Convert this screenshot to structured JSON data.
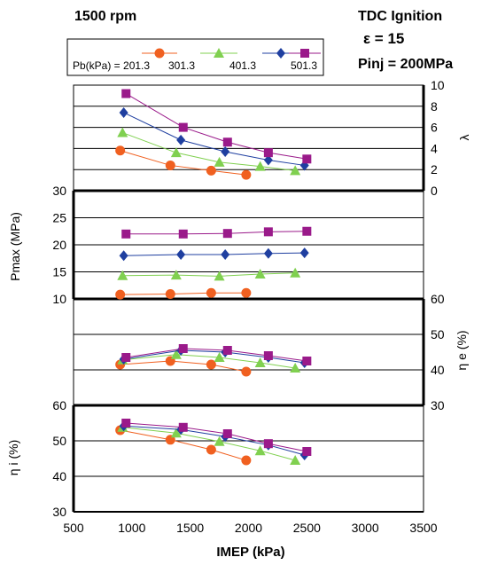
{
  "header": {
    "speed": "1500 rpm",
    "ignition": "TDC Ignition",
    "compression": "ε  = 15",
    "injection": "Pinj = 200MPa"
  },
  "legend": {
    "prefix": "Pb(kPa) = 201.3",
    "entries": [
      {
        "label": "201.3",
        "color": "#f06020",
        "marker": "circle"
      },
      {
        "label": "301.3",
        "color": "#80d050",
        "marker": "triangle"
      },
      {
        "label": "401.3",
        "color": "#1f3fa0",
        "marker": "diamond"
      },
      {
        "label": "501.3",
        "color": "#9a1a8a",
        "marker": "square"
      }
    ]
  },
  "chart_data": {
    "type": "line",
    "xlabel": "IMEP (kPa)",
    "xlim": [
      500,
      3500
    ],
    "xticks": [
      "500",
      "1000",
      "1500",
      "2000",
      "2500",
      "3000",
      "3500"
    ],
    "panels": [
      {
        "id": "lambda",
        "ylabel": "λ",
        "axis_side": "right",
        "ylim": [
          0,
          10
        ],
        "yticks": [
          "0",
          "2",
          "4",
          "6",
          "8",
          "10"
        ],
        "series": [
          {
            "name": "201.3",
            "points": [
              [
                900,
                3.8
              ],
              [
                1330,
                2.4
              ],
              [
                1680,
                1.9
              ],
              [
                1980,
                1.5
              ]
            ]
          },
          {
            "name": "301.3",
            "points": [
              [
                920,
                5.5
              ],
              [
                1380,
                3.6
              ],
              [
                1750,
                2.7
              ],
              [
                2100,
                2.3
              ],
              [
                2400,
                1.9
              ]
            ]
          },
          {
            "name": "401.3",
            "points": [
              [
                930,
                7.4
              ],
              [
                1420,
                4.8
              ],
              [
                1800,
                3.7
              ],
              [
                2170,
                2.9
              ],
              [
                2480,
                2.4
              ]
            ]
          },
          {
            "name": "501.3",
            "points": [
              [
                950,
                9.2
              ],
              [
                1440,
                6.0
              ],
              [
                1820,
                4.6
              ],
              [
                2170,
                3.6
              ],
              [
                2500,
                3.0
              ]
            ]
          }
        ]
      },
      {
        "id": "pmax",
        "ylabel": "Pmax (MPa)",
        "axis_side": "left",
        "ylim": [
          10,
          30
        ],
        "yticks": [
          "10",
          "15",
          "20",
          "25",
          "30"
        ],
        "series": [
          {
            "name": "201.3",
            "points": [
              [
                900,
                10.8
              ],
              [
                1330,
                10.9
              ],
              [
                1680,
                11.1
              ],
              [
                1980,
                11.1
              ]
            ]
          },
          {
            "name": "301.3",
            "points": [
              [
                920,
                14.3
              ],
              [
                1380,
                14.4
              ],
              [
                1750,
                14.2
              ],
              [
                2100,
                14.6
              ],
              [
                2400,
                14.8
              ]
            ]
          },
          {
            "name": "401.3",
            "points": [
              [
                930,
                18.0
              ],
              [
                1420,
                18.2
              ],
              [
                1800,
                18.2
              ],
              [
                2170,
                18.4
              ],
              [
                2480,
                18.5
              ]
            ]
          },
          {
            "name": "501.3",
            "points": [
              [
                950,
                22.0
              ],
              [
                1440,
                22.0
              ],
              [
                1820,
                22.1
              ],
              [
                2170,
                22.4
              ],
              [
                2500,
                22.5
              ]
            ]
          }
        ]
      },
      {
        "id": "eta_e",
        "ylabel": "η e (%)",
        "axis_side": "right",
        "ylim": [
          30,
          60
        ],
        "yticks": [
          "30",
          "40",
          "50",
          "60"
        ],
        "series": [
          {
            "name": "201.3",
            "points": [
              [
                900,
                41.5
              ],
              [
                1330,
                42.5
              ],
              [
                1680,
                41.5
              ],
              [
                1980,
                39.5
              ]
            ]
          },
          {
            "name": "301.3",
            "points": [
              [
                920,
                42.8
              ],
              [
                1380,
                44.3
              ],
              [
                1750,
                43.5
              ],
              [
                2100,
                42.0
              ],
              [
                2400,
                40.5
              ]
            ]
          },
          {
            "name": "401.3",
            "points": [
              [
                930,
                43.0
              ],
              [
                1420,
                45.5
              ],
              [
                1800,
                45.0
              ],
              [
                2170,
                43.5
              ],
              [
                2480,
                42.0
              ]
            ]
          },
          {
            "name": "501.3",
            "points": [
              [
                950,
                43.5
              ],
              [
                1440,
                46.0
              ],
              [
                1820,
                45.5
              ],
              [
                2170,
                44.0
              ],
              [
                2500,
                42.5
              ]
            ]
          }
        ]
      },
      {
        "id": "eta_i",
        "ylabel": "η i (%)",
        "axis_side": "left",
        "ylim": [
          30,
          60
        ],
        "yticks": [
          "30",
          "40",
          "50",
          "60"
        ],
        "series": [
          {
            "name": "201.3",
            "points": [
              [
                900,
                53.0
              ],
              [
                1330,
                50.3
              ],
              [
                1680,
                47.5
              ],
              [
                1980,
                44.5
              ]
            ]
          },
          {
            "name": "301.3",
            "points": [
              [
                920,
                53.8
              ],
              [
                1380,
                52.2
              ],
              [
                1750,
                49.8
              ],
              [
                2100,
                47.2
              ],
              [
                2400,
                44.5
              ]
            ]
          },
          {
            "name": "401.3",
            "points": [
              [
                930,
                54.2
              ],
              [
                1420,
                53.2
              ],
              [
                1800,
                51.2
              ],
              [
                2170,
                48.8
              ],
              [
                2480,
                46.0
              ]
            ]
          },
          {
            "name": "501.3",
            "points": [
              [
                950,
                55.0
              ],
              [
                1440,
                53.8
              ],
              [
                1820,
                52.0
              ],
              [
                2170,
                49.2
              ],
              [
                2500,
                47.0
              ]
            ]
          }
        ]
      }
    ]
  }
}
